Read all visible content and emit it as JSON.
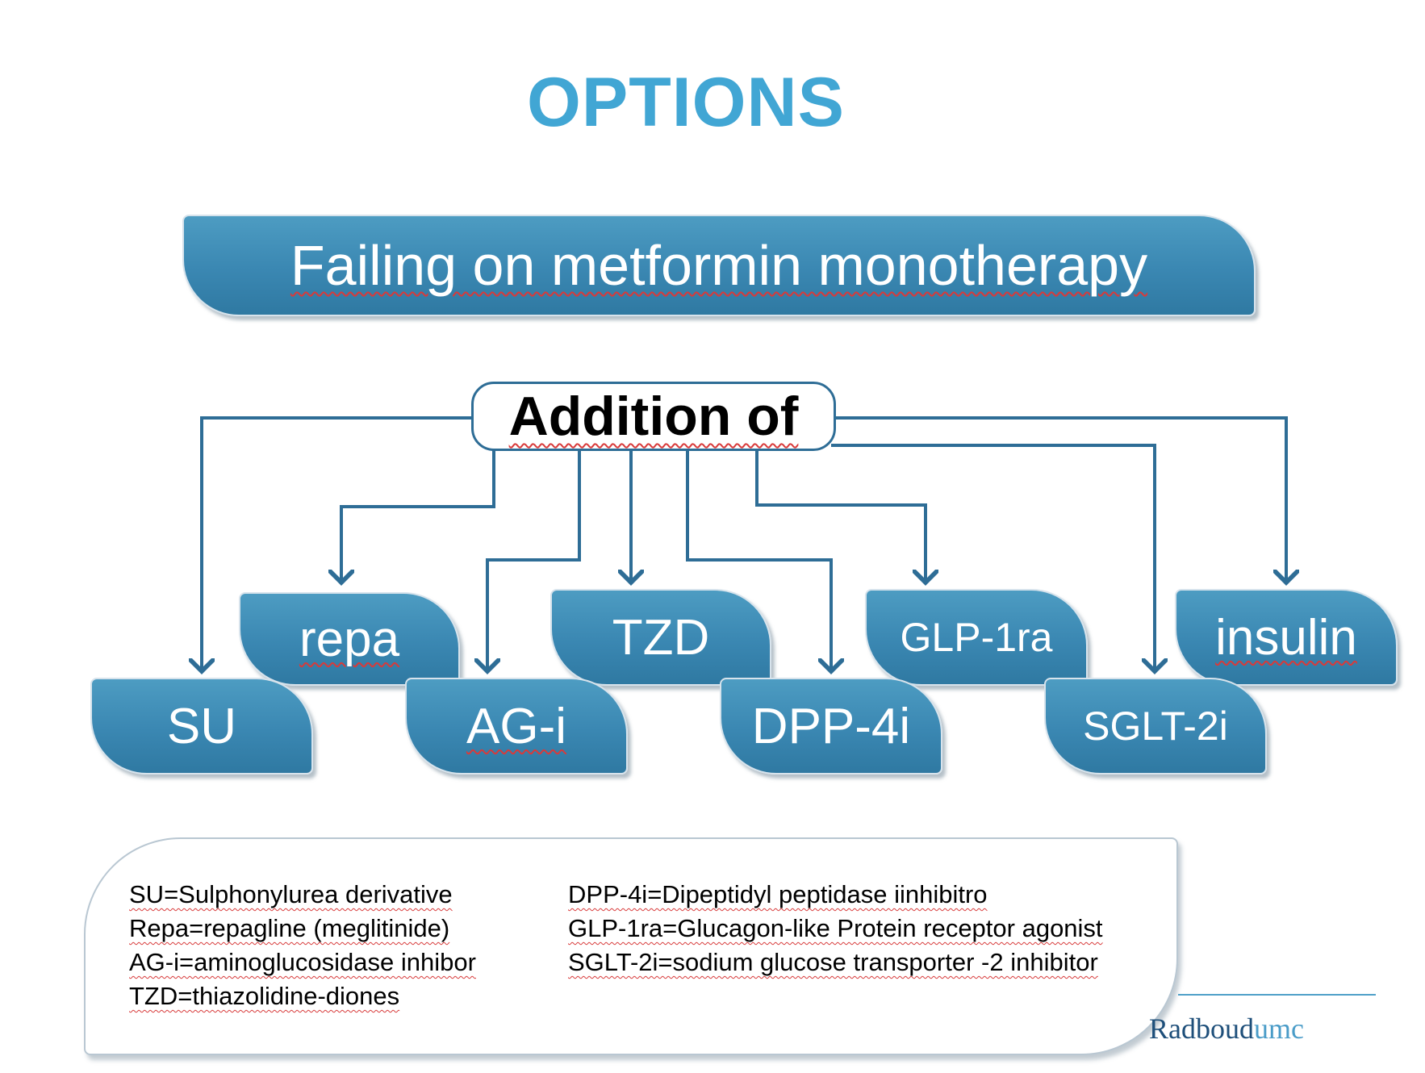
{
  "title": {
    "text": "OPTIONS",
    "color": "#41a6d4"
  },
  "main_box": {
    "label": "Failing on metformin monotherapy"
  },
  "addition": {
    "label": "Addition of"
  },
  "drugs": [
    {
      "label": "SU"
    },
    {
      "label": "repa"
    },
    {
      "label": "AG-i"
    },
    {
      "label": "TZD"
    },
    {
      "label": "DPP-4i"
    },
    {
      "label": "GLP-1ra"
    },
    {
      "label": "SGLT-2i"
    },
    {
      "label": "insulin"
    }
  ],
  "legend": {
    "left": [
      "SU=Sulphonylurea derivative",
      "Repa=repagline (meglitinide)",
      "AG-i=aminoglucosidase inhibor",
      "TZD=thiazolidine-diones"
    ],
    "right": [
      "DPP-4i=Dipeptidyl peptidase iinhibitro",
      "GLP-1ra=Glucagon-like Protein receptor agonist",
      "SGLT-2i=sodium glucose transporter -2 inhibitor"
    ]
  },
  "logo": {
    "name": "Radboud",
    "suffix": "umc"
  },
  "colors": {
    "box_fill": "#3a87b2",
    "connector": "#2e6d96",
    "title": "#41a6d4"
  }
}
